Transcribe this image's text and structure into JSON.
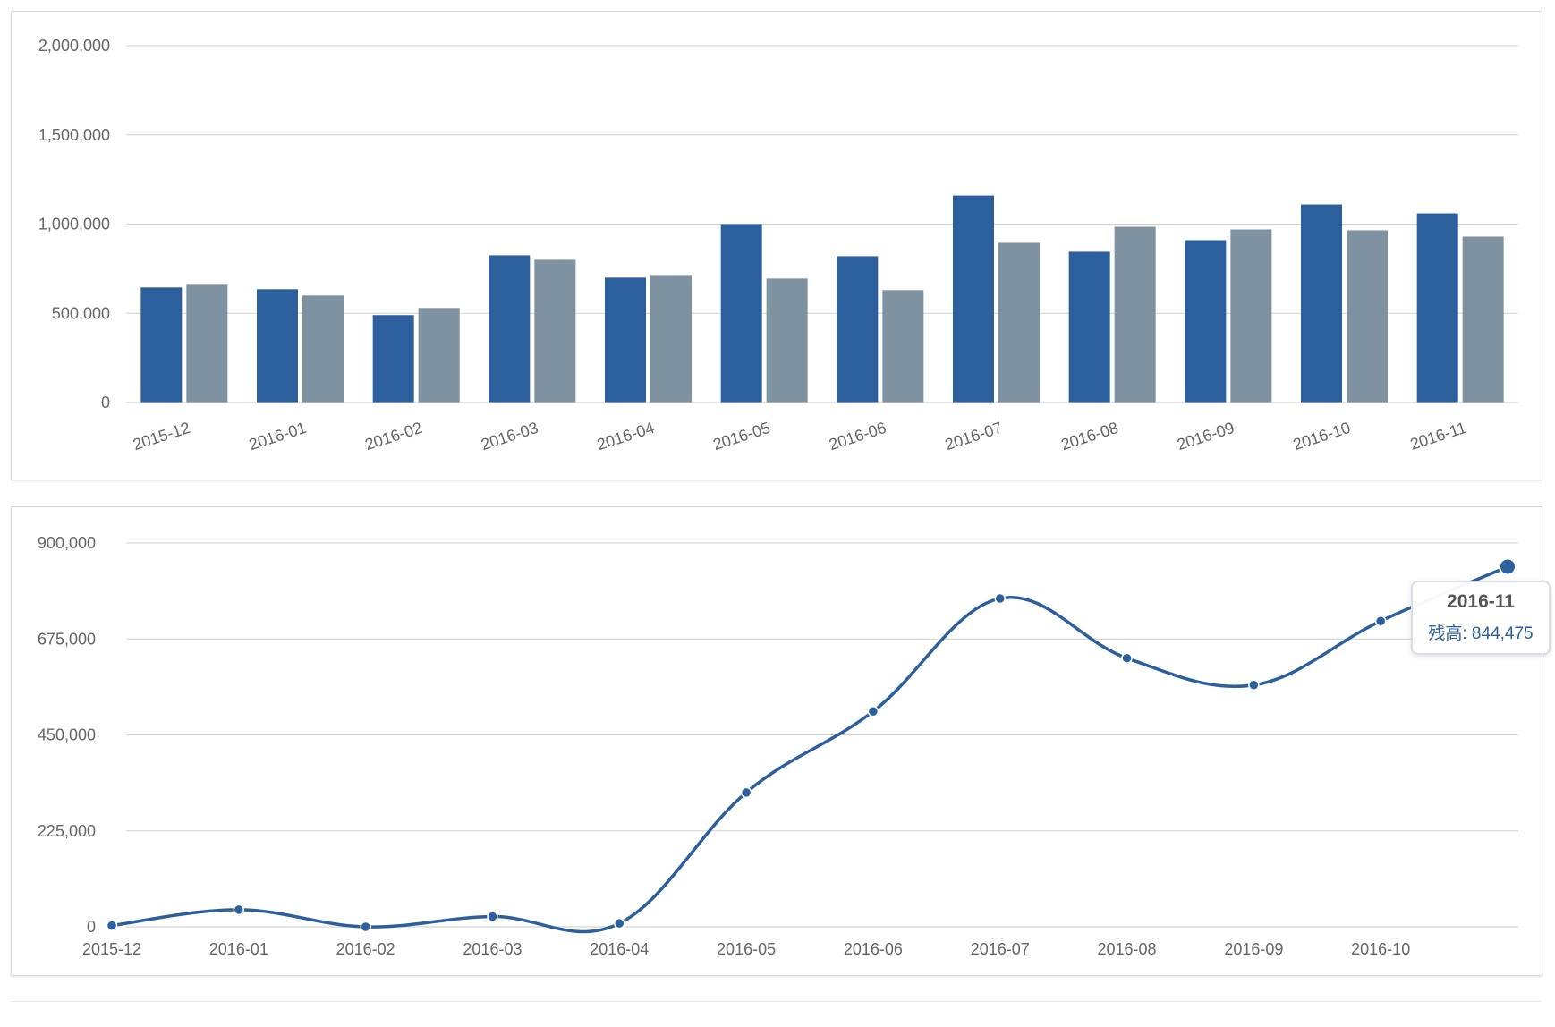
{
  "colors": {
    "primary_series": "#2c5f9e",
    "secondary_series": "#7f92a1",
    "gridline": "#d0d0d0",
    "axis_text": "#666666"
  },
  "chart_data": [
    {
      "type": "bar",
      "categories": [
        "2015-12",
        "2016-01",
        "2016-02",
        "2016-03",
        "2016-04",
        "2016-05",
        "2016-06",
        "2016-07",
        "2016-08",
        "2016-09",
        "2016-10",
        "2016-11"
      ],
      "series": [
        {
          "values": [
            645000,
            635000,
            490000,
            825000,
            700000,
            1000000,
            820000,
            1160000,
            845000,
            910000,
            1110000,
            1060000
          ]
        },
        {
          "values": [
            660000,
            600000,
            530000,
            800000,
            715000,
            695000,
            630000,
            895000,
            985000,
            970000,
            965000,
            930000
          ]
        }
      ],
      "ylim": [
        0,
        2000000
      ],
      "y_ticks": [
        "0",
        "500,000",
        "1,000,000",
        "1,500,000",
        "2,000,000"
      ],
      "grid": true,
      "legend": "none"
    },
    {
      "type": "line",
      "categories": [
        "2015-12",
        "2016-01",
        "2016-02",
        "2016-03",
        "2016-04",
        "2016-05",
        "2016-06",
        "2016-07",
        "2016-08",
        "2016-09",
        "2016-10",
        "2016-11"
      ],
      "x_tick_labels": [
        "2015-12",
        "2016-01",
        "2016-02",
        "2016-03",
        "2016-04",
        "2016-05",
        "2016-06",
        "2016-07",
        "2016-08",
        "2016-09",
        "2016-10"
      ],
      "series": [
        {
          "values": [
            3000,
            40000,
            0,
            24000,
            8000,
            315000,
            505000,
            770000,
            630000,
            567000,
            717000,
            844475
          ]
        }
      ],
      "ylim": [
        0,
        900000
      ],
      "y_ticks": [
        "0",
        "225,000",
        "450,000",
        "675,000",
        "900,000"
      ],
      "grid": true,
      "legend": "none",
      "tooltip": {
        "title": "2016-11",
        "label": "残高: 844,475"
      }
    }
  ]
}
